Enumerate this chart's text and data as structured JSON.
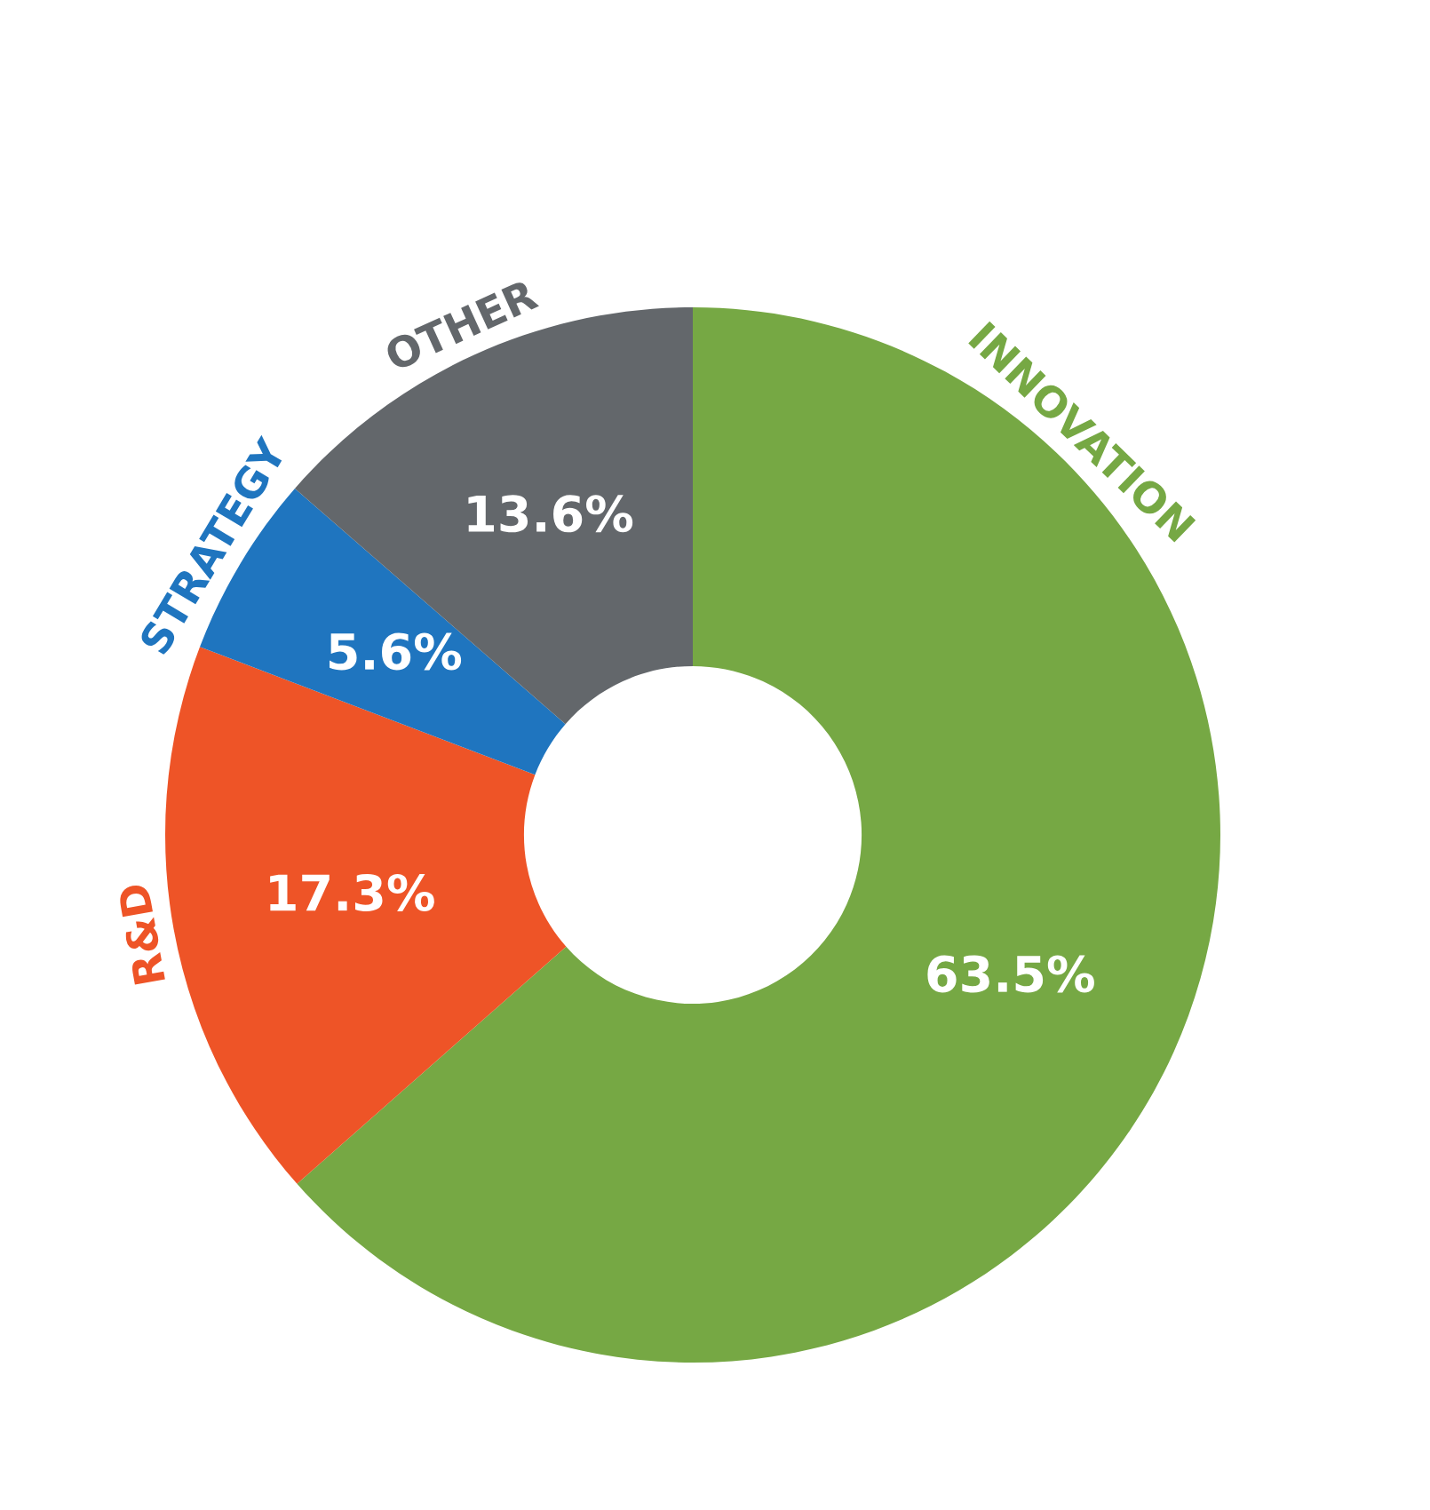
{
  "chart_data": {
    "type": "donut",
    "categories": [
      "INNOVATION",
      "R&D",
      "STRATEGY",
      "OTHER"
    ],
    "values": [
      63.5,
      17.3,
      5.6,
      13.6
    ],
    "colors": [
      "#76a844",
      "#ee5427",
      "#1f75bf",
      "#63676b"
    ],
    "value_labels": [
      "63.5%",
      "17.3%",
      "5.6%",
      "13.6%"
    ]
  }
}
